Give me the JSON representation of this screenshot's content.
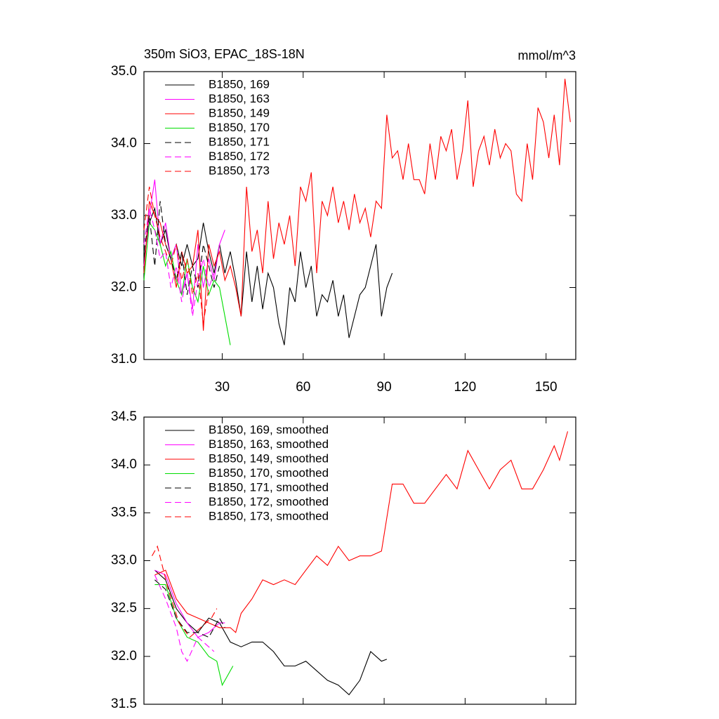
{
  "chart_data": [
    {
      "type": "line",
      "title": "350m SiO3, EPAC_18S-18N",
      "units": "mmol/m^3",
      "xlim": [
        1,
        161
      ],
      "xticks": [
        30,
        60,
        90,
        120,
        150
      ],
      "show_xtick_labels": true,
      "ylim": [
        31,
        35
      ],
      "yticks": [
        {
          "value": 31,
          "label": "31.0"
        },
        {
          "value": 32,
          "label": "32.0"
        },
        {
          "value": 33,
          "label": "33.0"
        },
        {
          "value": 34,
          "label": "34.0"
        },
        {
          "value": 35,
          "label": "35.0"
        }
      ],
      "legend": "upper left",
      "series": [
        {
          "name": "B1850, 169",
          "color": "#000000",
          "dash": false,
          "x": [
            1,
            3,
            5,
            7,
            9,
            11,
            13,
            15,
            17,
            19,
            21,
            23,
            25,
            27,
            29,
            31,
            33,
            35,
            37,
            39,
            41,
            43,
            45,
            47,
            49,
            51,
            53,
            55,
            57,
            59,
            61,
            63,
            65,
            67,
            69,
            71,
            73,
            75,
            77,
            79,
            81,
            83,
            85,
            87,
            89,
            91,
            93
          ],
          "values": [
            32.4,
            32.9,
            33.1,
            32.6,
            32.8,
            32.4,
            32.6,
            32.3,
            32.6,
            32.3,
            32.4,
            32.9,
            32.5,
            32.2,
            32.6,
            32.2,
            32.5,
            32.1,
            31.6,
            32.5,
            31.8,
            32.3,
            31.7,
            32.2,
            32.0,
            31.5,
            31.2,
            32.0,
            31.8,
            32.5,
            32.0,
            32.3,
            31.6,
            31.9,
            31.8,
            32.1,
            31.6,
            31.9,
            31.3,
            31.6,
            31.9,
            32.0,
            32.3,
            32.6,
            31.6,
            32.0,
            32.2
          ]
        },
        {
          "name": "B1850, 163",
          "color": "#ff00ff",
          "dash": false,
          "x": [
            1,
            3,
            5,
            7,
            9,
            11,
            13,
            15,
            17,
            19,
            21,
            23,
            25,
            27,
            29,
            31
          ],
          "values": [
            32.3,
            33.0,
            33.5,
            32.6,
            32.9,
            32.4,
            32.6,
            31.9,
            32.2,
            31.7,
            32.6,
            32.0,
            32.4,
            32.1,
            32.6,
            32.8
          ]
        },
        {
          "name": "B1850, 149",
          "color": "#ff0000",
          "dash": false,
          "x": [
            1,
            3,
            5,
            7,
            9,
            11,
            13,
            15,
            17,
            19,
            21,
            23,
            25,
            27,
            29,
            31,
            33,
            35,
            37,
            39,
            41,
            43,
            45,
            47,
            49,
            51,
            53,
            55,
            57,
            59,
            61,
            63,
            65,
            67,
            69,
            71,
            73,
            75,
            77,
            79,
            81,
            83,
            85,
            87,
            89,
            91,
            93,
            95,
            97,
            99,
            101,
            103,
            105,
            107,
            109,
            111,
            113,
            115,
            117,
            119,
            121,
            123,
            125,
            127,
            129,
            131,
            133,
            135,
            137,
            139,
            141,
            143,
            145,
            147,
            149,
            151,
            153,
            155,
            157,
            159
          ],
          "values": [
            32.2,
            33.2,
            33.0,
            32.9,
            32.6,
            32.4,
            32.0,
            32.5,
            32.2,
            32.3,
            32.8,
            31.4,
            32.6,
            32.3,
            32.5,
            32.1,
            32.3,
            32.0,
            31.6,
            33.4,
            32.5,
            32.8,
            32.2,
            33.2,
            32.4,
            32.9,
            32.6,
            33.0,
            32.3,
            33.4,
            33.2,
            33.6,
            32.2,
            33.2,
            33.0,
            33.4,
            32.9,
            33.2,
            32.8,
            33.3,
            32.9,
            33.1,
            32.7,
            33.2,
            33.1,
            34.4,
            33.8,
            33.9,
            33.5,
            34.0,
            33.5,
            33.5,
            33.3,
            34.0,
            33.5,
            34.1,
            33.9,
            34.2,
            33.5,
            33.9,
            34.6,
            33.4,
            33.9,
            34.1,
            33.7,
            34.2,
            33.8,
            34.0,
            33.9,
            33.3,
            33.2,
            34.0,
            33.5,
            34.5,
            34.3,
            33.8,
            34.4,
            33.7,
            34.9,
            34.3
          ]
        },
        {
          "name": "B1850, 170",
          "color": "#00dd00",
          "dash": false,
          "x": [
            1,
            3,
            5,
            7,
            9,
            11,
            13,
            15,
            17,
            19,
            21,
            23,
            25,
            27,
            29,
            31,
            33
          ],
          "values": [
            32.1,
            32.9,
            32.8,
            32.6,
            32.3,
            32.5,
            32.1,
            31.9,
            32.4,
            32.0,
            31.8,
            32.3,
            31.9,
            32.1,
            32.0,
            31.6,
            31.2
          ]
        },
        {
          "name": "B1850, 171",
          "color": "#000000",
          "dash": true,
          "x": [
            1,
            3,
            5,
            7,
            9,
            11,
            13,
            15,
            17,
            19,
            21,
            23,
            25,
            27,
            29
          ],
          "values": [
            32.5,
            33.0,
            32.3,
            33.2,
            32.6,
            32.4,
            32.1,
            32.5,
            31.9,
            32.3,
            32.0,
            32.6,
            32.3,
            32.0,
            32.3
          ]
        },
        {
          "name": "B1850, 172",
          "color": "#ff00ff",
          "dash": true,
          "x": [
            1,
            3,
            5,
            7,
            9,
            11,
            13,
            15,
            17,
            19,
            21,
            23,
            25,
            27
          ],
          "values": [
            32.6,
            33.1,
            32.8,
            32.4,
            32.5,
            32.0,
            32.3,
            31.8,
            32.2,
            31.6,
            32.1,
            32.4,
            32.0,
            32.2
          ]
        },
        {
          "name": "B1850, 173",
          "color": "#ff0000",
          "dash": true,
          "x": [
            1,
            3,
            5,
            7,
            9,
            11,
            13,
            15,
            17,
            19,
            21,
            23,
            25
          ],
          "values": [
            32.8,
            33.4,
            33.0,
            32.7,
            32.5,
            32.3,
            32.6,
            32.1,
            32.4,
            31.9,
            32.2,
            31.5,
            32.0
          ]
        }
      ]
    },
    {
      "type": "line",
      "xlim": [
        1,
        161
      ],
      "xticks": [
        30,
        60,
        90,
        120,
        150
      ],
      "show_xtick_labels": false,
      "ylim": [
        31.5,
        34.5
      ],
      "yticks": [
        34.5,
        {
          "value": 34,
          "label": "34.0"
        },
        33.5,
        {
          "value": 33,
          "label": "33.0"
        },
        32.5,
        {
          "value": 32,
          "label": "32.0"
        },
        31.5
      ],
      "legend": "upper left",
      "series": [
        {
          "name": "B1850, 169, smoothed",
          "color": "#000000",
          "dash": false,
          "x": [
            5,
            9,
            13,
            17,
            21,
            25,
            29,
            33,
            37,
            41,
            45,
            49,
            53,
            57,
            61,
            65,
            69,
            73,
            77,
            81,
            85,
            89,
            91
          ],
          "values": [
            32.9,
            32.8,
            32.5,
            32.35,
            32.25,
            32.4,
            32.35,
            32.15,
            32.1,
            32.15,
            32.15,
            32.05,
            31.9,
            31.9,
            31.95,
            31.85,
            31.75,
            31.7,
            31.6,
            31.75,
            32.05,
            31.95,
            31.97
          ]
        },
        {
          "name": "B1850, 163, smoothed",
          "color": "#ff00ff",
          "dash": false,
          "x": [
            5,
            9,
            13,
            17,
            21,
            25,
            29,
            31
          ],
          "values": [
            32.9,
            32.85,
            32.55,
            32.35,
            32.2,
            32.25,
            32.35,
            32.35
          ]
        },
        {
          "name": "B1850, 149, smoothed",
          "color": "#ff0000",
          "dash": false,
          "x": [
            5,
            9,
            13,
            17,
            21,
            25,
            29,
            33,
            35,
            37,
            41,
            45,
            49,
            53,
            57,
            61,
            65,
            69,
            73,
            77,
            81,
            85,
            89,
            93,
            97,
            101,
            105,
            109,
            113,
            117,
            121,
            125,
            129,
            133,
            137,
            141,
            145,
            149,
            153,
            155,
            158
          ],
          "values": [
            32.85,
            32.9,
            32.6,
            32.45,
            32.4,
            32.35,
            32.3,
            32.3,
            32.25,
            32.45,
            32.6,
            32.8,
            32.75,
            32.8,
            32.75,
            32.9,
            33.05,
            32.95,
            33.15,
            33.0,
            33.05,
            33.05,
            33.1,
            33.8,
            33.8,
            33.6,
            33.6,
            33.75,
            33.9,
            33.75,
            34.15,
            33.95,
            33.75,
            33.95,
            34.05,
            33.75,
            33.75,
            33.95,
            34.2,
            34.05,
            34.35
          ]
        },
        {
          "name": "B1850, 170, smoothed",
          "color": "#00dd00",
          "dash": false,
          "x": [
            5,
            9,
            13,
            17,
            21,
            25,
            28,
            30,
            32,
            34
          ],
          "values": [
            32.75,
            32.75,
            32.4,
            32.2,
            32.15,
            32.0,
            31.95,
            31.7,
            31.8,
            31.9
          ]
        },
        {
          "name": "B1850, 171, smoothed",
          "color": "#000000",
          "dash": true,
          "x": [
            5,
            9,
            13,
            17,
            21,
            25,
            29,
            31
          ],
          "values": [
            32.8,
            32.7,
            32.4,
            32.25,
            32.25,
            32.2,
            32.4,
            32.3
          ]
        },
        {
          "name": "B1850, 172, smoothed",
          "color": "#ff00ff",
          "dash": true,
          "x": [
            5,
            9,
            13,
            15,
            17,
            21,
            25,
            27
          ],
          "values": [
            32.85,
            32.6,
            32.3,
            32.05,
            31.95,
            32.2,
            32.1,
            32.05
          ]
        },
        {
          "name": "B1850, 173, smoothed",
          "color": "#ff0000",
          "dash": true,
          "x": [
            4,
            6,
            10,
            14,
            18,
            22,
            26,
            28
          ],
          "values": [
            33.05,
            33.15,
            32.7,
            32.35,
            32.2,
            32.3,
            32.4,
            32.5
          ]
        }
      ]
    }
  ]
}
